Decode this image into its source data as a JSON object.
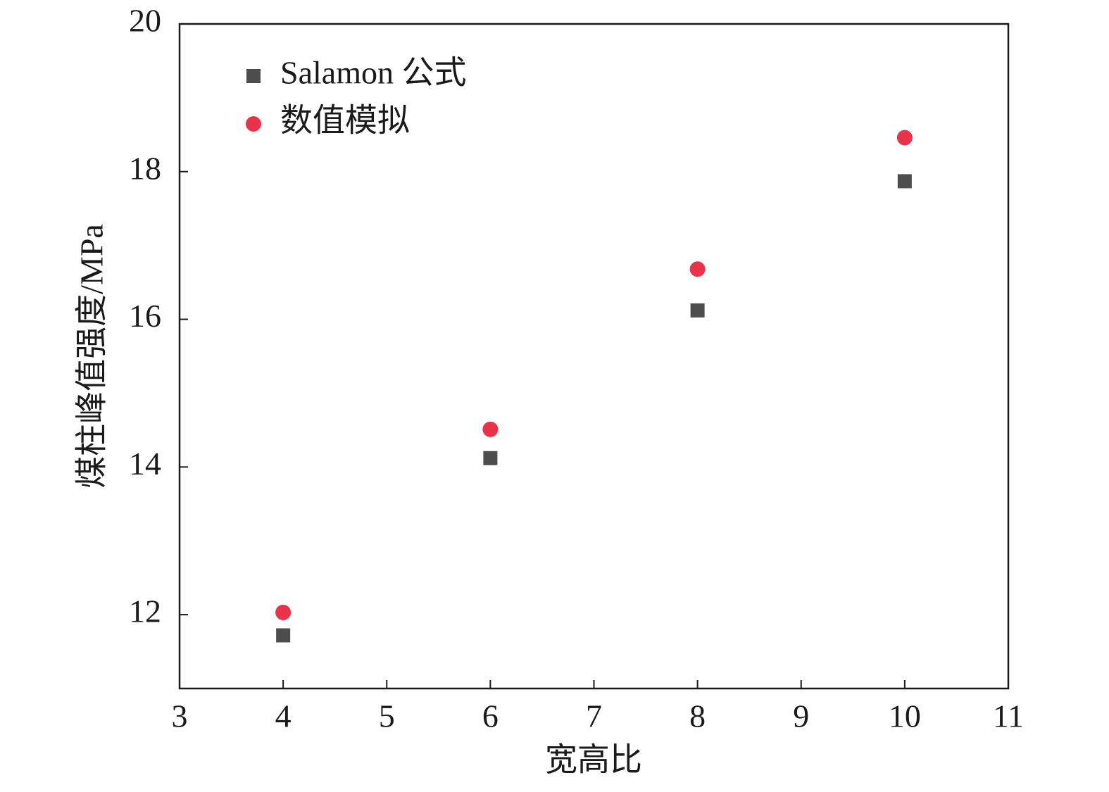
{
  "chart_data": {
    "type": "scatter",
    "x_label": "宽高比",
    "y_label": "煤柱峰值强度/MPa",
    "x": [
      4,
      6,
      8,
      10
    ],
    "series": [
      {
        "name": "Salamon 公式",
        "color": "#4d4d4d",
        "marker": "square",
        "values": [
          11.72,
          14.12,
          16.12,
          17.87
        ]
      },
      {
        "name": "数值模拟",
        "color": "#e8334a",
        "marker": "circle",
        "values": [
          12.03,
          14.51,
          16.68,
          18.46
        ]
      }
    ],
    "xlim": [
      3,
      11
    ],
    "xticks": [
      3,
      4,
      5,
      6,
      7,
      8,
      9,
      10,
      11
    ],
    "ylim": [
      11,
      20
    ],
    "yticks": [
      12,
      14,
      16,
      18,
      20
    ],
    "legend": "upper left",
    "grid": false
  }
}
